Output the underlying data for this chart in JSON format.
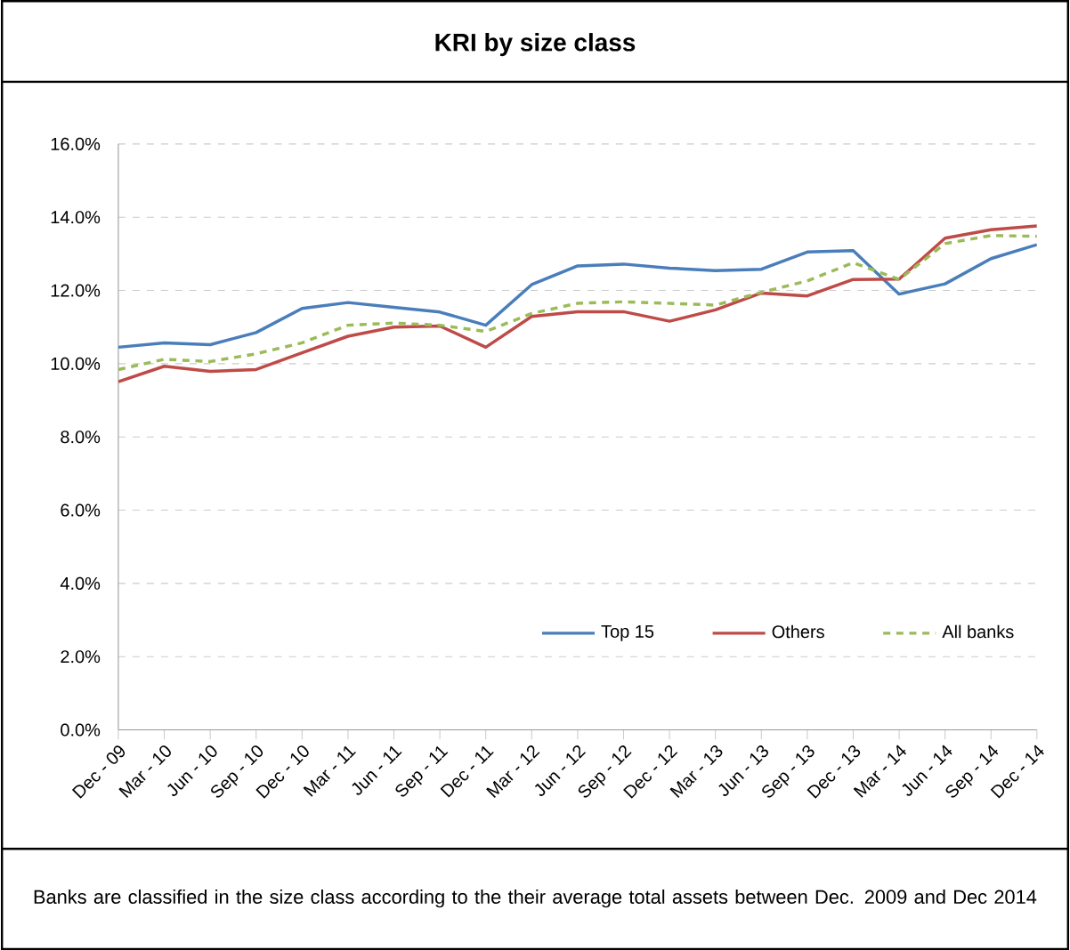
{
  "chart_data": {
    "type": "line",
    "title": "KRI by size class",
    "categories": [
      "Dec - 09",
      "Mar - 10",
      "Jun - 10",
      "Sep - 10",
      "Dec - 10",
      "Mar - 11",
      "Jun - 11",
      "Sep - 11",
      "Dec - 11",
      "Mar - 12",
      "Jun - 12",
      "Sep - 12",
      "Dec - 12",
      "Mar - 13",
      "Jun - 13",
      "Sep - 13",
      "Dec - 13",
      "Mar - 14",
      "Jun - 14",
      "Sep - 14",
      "Dec - 14"
    ],
    "series": [
      {
        "name": "Top 15",
        "color": "#4a7ebb",
        "line_style": "solid",
        "values": [
          10.45,
          10.57,
          10.52,
          10.85,
          11.51,
          11.67,
          11.54,
          11.41,
          11.05,
          12.16,
          12.67,
          12.72,
          12.61,
          12.54,
          12.58,
          13.05,
          13.09,
          11.9,
          12.18,
          12.87,
          13.25
        ]
      },
      {
        "name": "Others",
        "color": "#be4b48",
        "line_style": "solid",
        "values": [
          9.51,
          9.93,
          9.79,
          9.84,
          10.3,
          10.75,
          11.0,
          11.03,
          10.45,
          11.29,
          11.42,
          11.42,
          11.16,
          11.47,
          11.93,
          11.85,
          12.3,
          12.31,
          13.43,
          13.66,
          13.76
        ]
      },
      {
        "name": "All banks",
        "color": "#9bbb59",
        "line_style": "dashed",
        "values": [
          9.84,
          10.12,
          10.06,
          10.27,
          10.57,
          11.05,
          11.11,
          11.05,
          10.88,
          11.37,
          11.65,
          11.69,
          11.65,
          11.6,
          11.95,
          12.26,
          12.76,
          12.3,
          13.28,
          13.5,
          13.48
        ]
      }
    ],
    "ylim": [
      0,
      16
    ],
    "yticks": [
      {
        "value": 0,
        "label": "0.0%"
      },
      {
        "value": 2,
        "label": "2.0%"
      },
      {
        "value": 4,
        "label": "4.0%"
      },
      {
        "value": 6,
        "label": "6.0%"
      },
      {
        "value": 8,
        "label": "8.0%"
      },
      {
        "value": 10,
        "label": "10.0%"
      },
      {
        "value": 12,
        "label": "12.0%"
      },
      {
        "value": 14,
        "label": "14.0%"
      },
      {
        "value": 16,
        "label": "16.0%"
      }
    ],
    "grid": "y",
    "legend": "bottom right",
    "annotations": [
      "Banks are classified in the size class according to the their average total assets between Dec. 2009 and Dec 2014"
    ]
  }
}
